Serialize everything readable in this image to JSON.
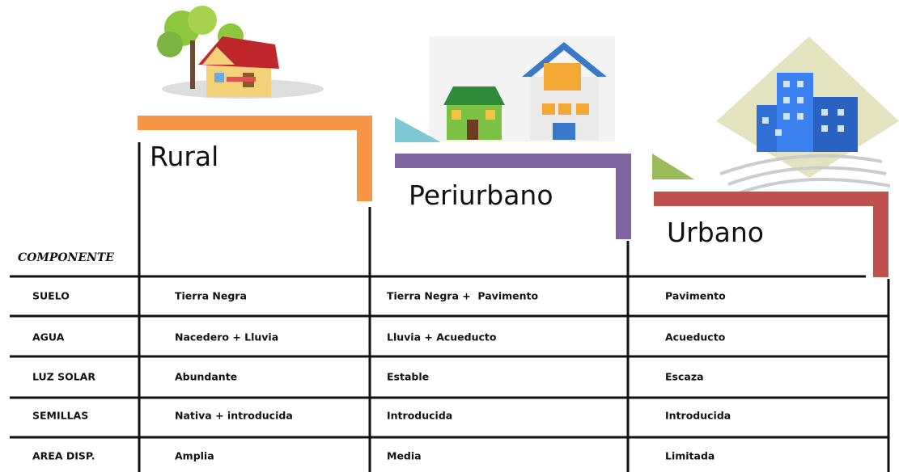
{
  "table": {
    "corner": "COMPONENTE",
    "columns": [
      "Rural",
      "Periurbano",
      "Urbano"
    ],
    "rows": [
      [
        "SUELO",
        "Tierra Negra",
        "Tierra Negra +  Pavimento",
        "Pavimento"
      ],
      [
        "AGUA",
        "Nacedero + Lluvia",
        "Lluvia + Acueducto",
        "Acueducto"
      ],
      [
        "LUZ SOLAR",
        "Abundante",
        "Estable",
        "Escaza"
      ],
      [
        "SEMILLAS",
        "Nativa + introducida",
        "Introducida",
        "Introducida"
      ],
      [
        "AREA DISP.",
        "Amplia",
        "Media",
        "Limitada"
      ]
    ]
  }
}
